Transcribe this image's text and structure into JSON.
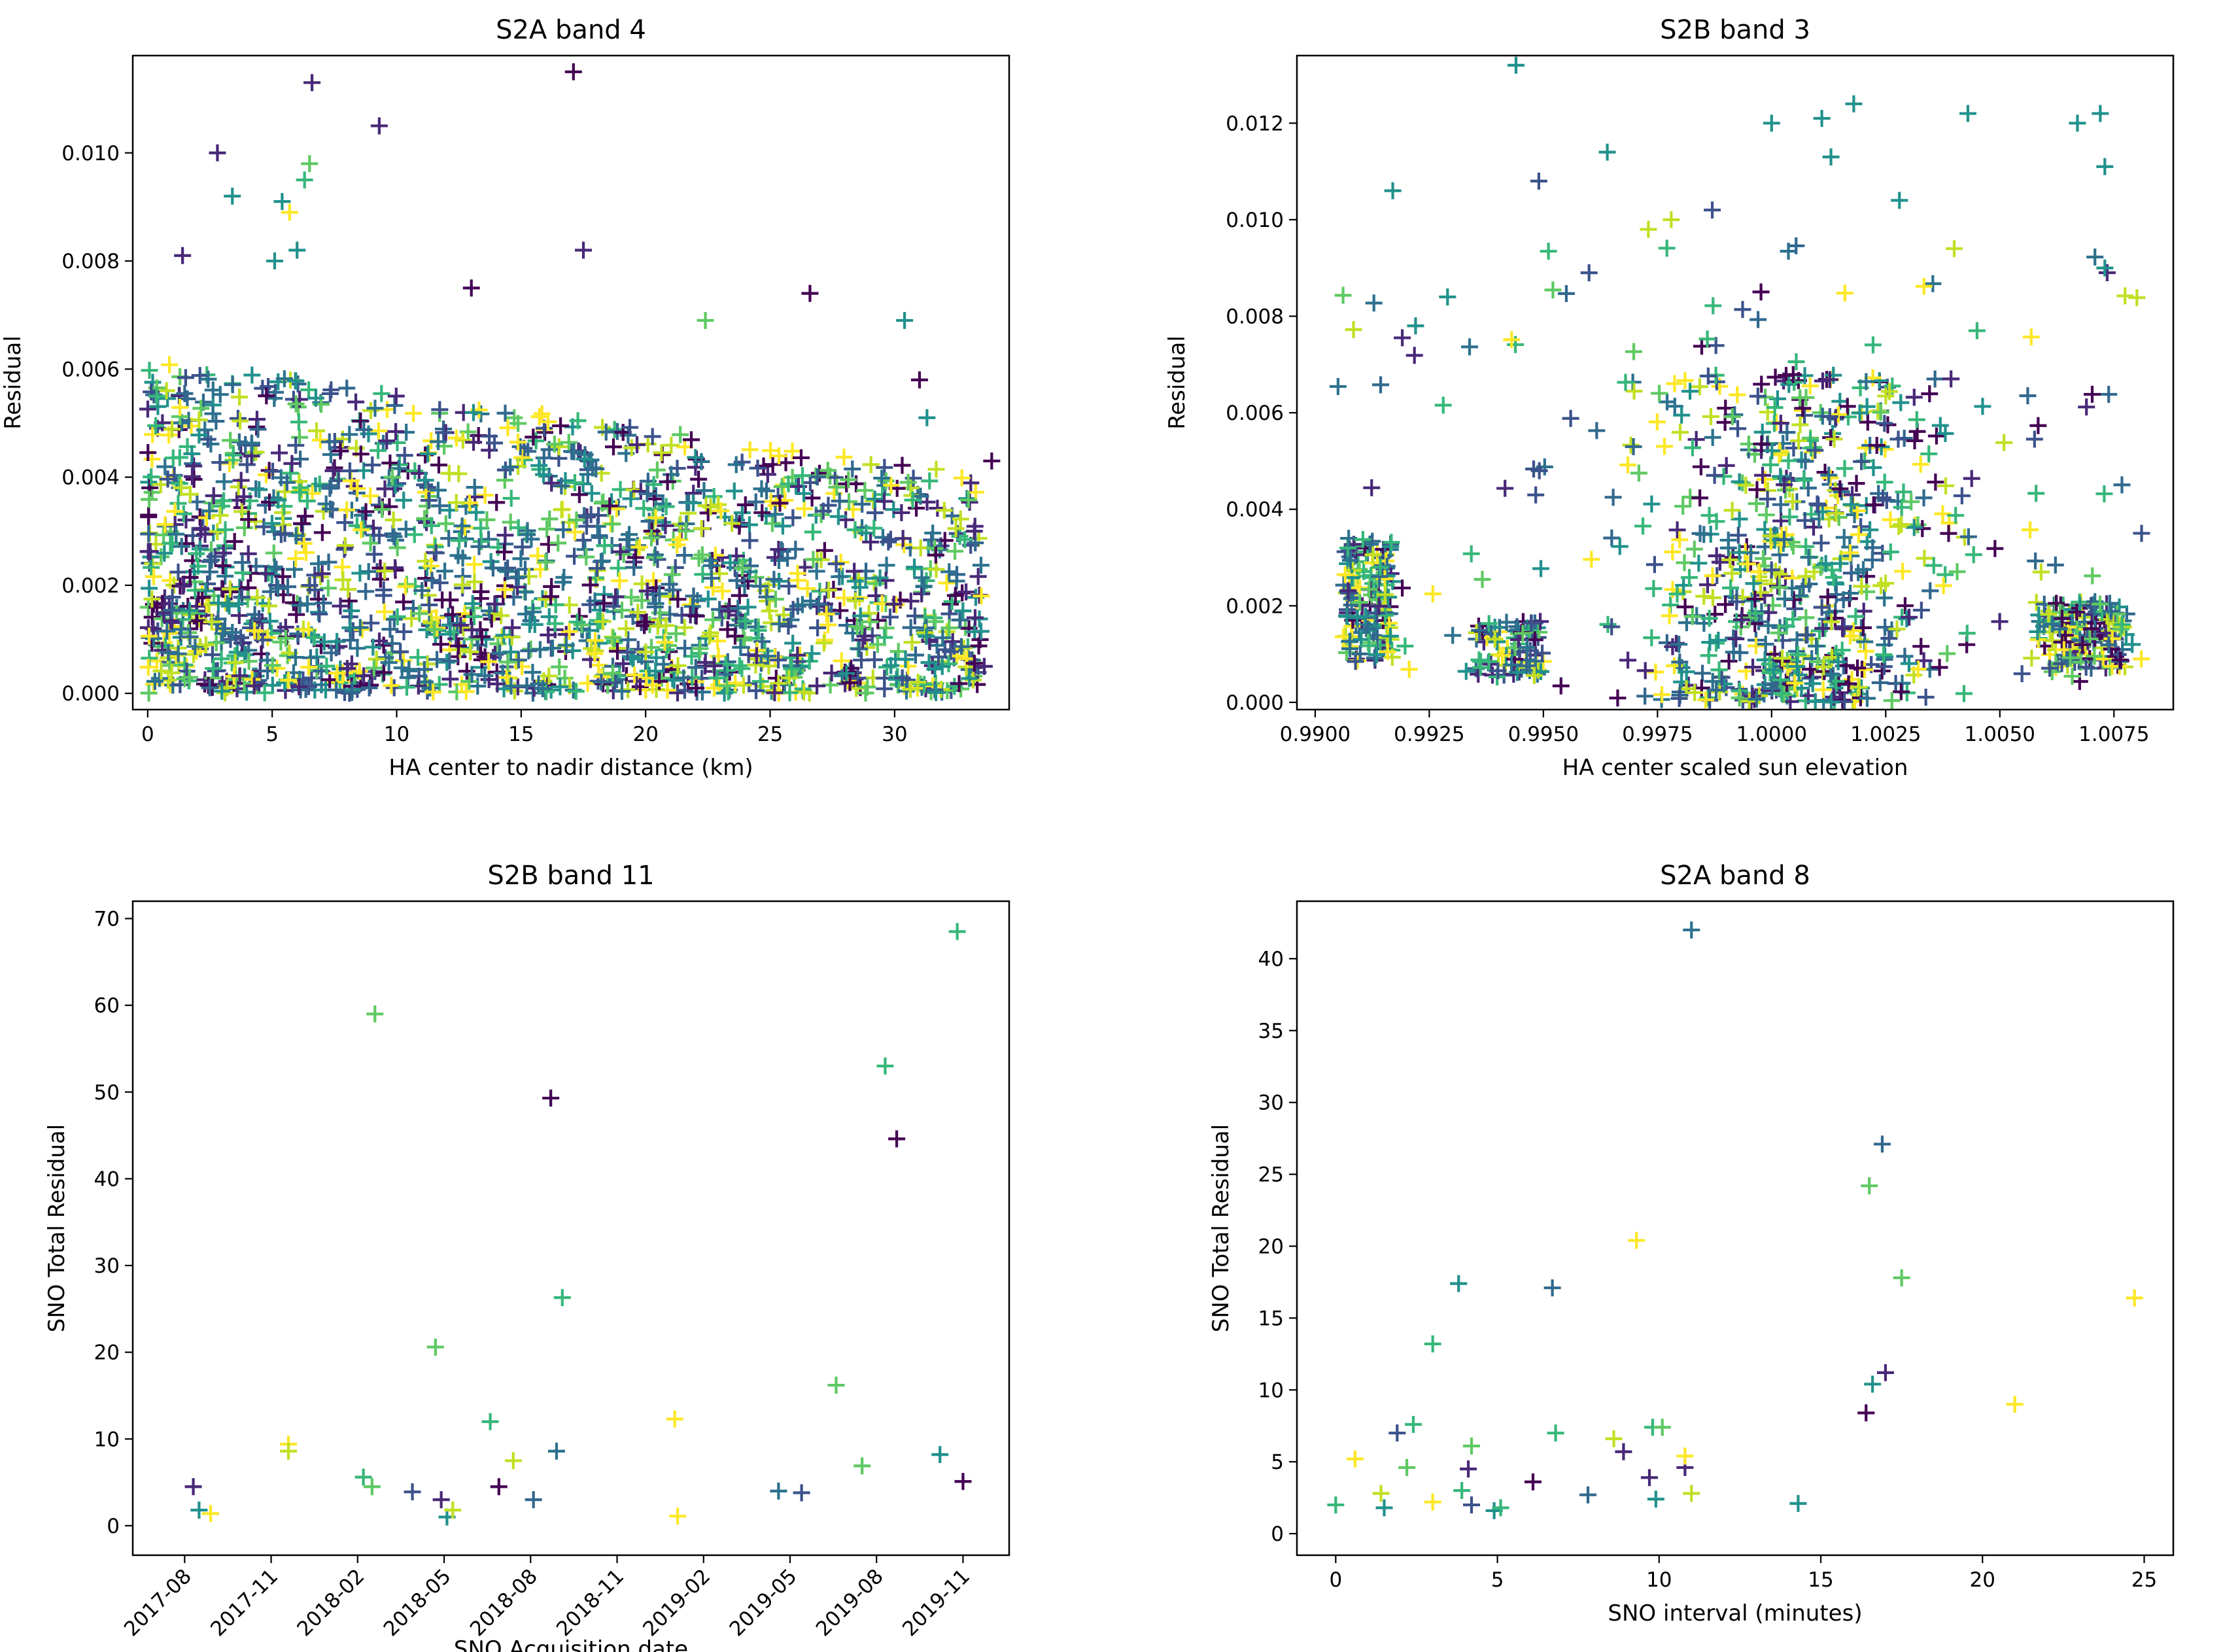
{
  "figure": {
    "description_colors": "viridis"
  },
  "colors": [
    "#440154",
    "#3b528b",
    "#21918c",
    "#5ec962",
    "#fde725",
    "#482878",
    "#31688e",
    "#35b779",
    "#c2df23",
    "#2c728e"
  ],
  "chart_data": [
    {
      "type": "scatter",
      "title": "S2A band 4",
      "xlabel": "HA center to nadir distance (km)",
      "ylabel": "Residual",
      "xlim": [
        -0.6,
        34.6
      ],
      "ylim": [
        -0.0003,
        0.0118
      ],
      "xticks": [
        0,
        5,
        10,
        15,
        20,
        25,
        30
      ],
      "xtick_labels": [
        "0",
        "5",
        "10",
        "15",
        "20",
        "25",
        "30"
      ],
      "yticks": [
        0.0,
        0.002,
        0.004,
        0.006,
        0.008,
        0.01
      ],
      "ytick_labels": [
        "0.000",
        "0.002",
        "0.004",
        "0.006",
        "0.008",
        "0.010"
      ],
      "marker": "+",
      "highlighted_points": [
        {
          "x": 6.6,
          "y": 0.0113,
          "c": 5
        },
        {
          "x": 17.1,
          "y": 0.0115,
          "c": 0
        },
        {
          "x": 2.8,
          "y": 0.01,
          "c": 5
        },
        {
          "x": 9.3,
          "y": 0.0105,
          "c": 5
        },
        {
          "x": 3.4,
          "y": 0.0092,
          "c": 2
        },
        {
          "x": 6.5,
          "y": 0.0098,
          "c": 3
        },
        {
          "x": 5.4,
          "y": 0.0091,
          "c": 2
        },
        {
          "x": 5.7,
          "y": 0.0089,
          "c": 4
        },
        {
          "x": 6.3,
          "y": 0.0095,
          "c": 7
        },
        {
          "x": 1.4,
          "y": 0.0081,
          "c": 5
        },
        {
          "x": 17.5,
          "y": 0.0082,
          "c": 5
        },
        {
          "x": 6.0,
          "y": 0.0082,
          "c": 2
        },
        {
          "x": 5.1,
          "y": 0.008,
          "c": 2
        },
        {
          "x": 26.6,
          "y": 0.0074,
          "c": 0
        },
        {
          "x": 13.0,
          "y": 0.0075,
          "c": 0
        },
        {
          "x": 30.4,
          "y": 0.0069,
          "c": 2
        },
        {
          "x": 22.4,
          "y": 0.0069,
          "c": 3
        },
        {
          "x": 33.9,
          "y": 0.0043,
          "c": 0
        },
        {
          "x": 33.2,
          "y": 0.003,
          "c": 5
        },
        {
          "x": 33.6,
          "y": 0.0005,
          "c": 5
        },
        {
          "x": 32.5,
          "y": 0.0022,
          "c": 6
        },
        {
          "x": 31.0,
          "y": 0.0058,
          "c": 0
        },
        {
          "x": 31.3,
          "y": 0.0051,
          "c": 2
        }
      ],
      "cloud": {
        "n": 1800,
        "x_range": [
          0,
          33.5
        ],
        "typical_max": 0.0062
      }
    },
    {
      "type": "scatter",
      "title": "S2B band 3",
      "xlabel": "HA center scaled sun elevation",
      "ylabel": "Residual",
      "xlim": [
        0.9896,
        1.0088
      ],
      "ylim": [
        -0.00015,
        0.0134
      ],
      "xticks": [
        0.99,
        0.9925,
        0.995,
        0.9975,
        1.0,
        1.0025,
        1.005,
        1.0075
      ],
      "xtick_labels": [
        "0.9900",
        "0.9925",
        "0.9950",
        "0.9975",
        "1.0000",
        "1.0025",
        "1.0050",
        "1.0075"
      ],
      "yticks": [
        0.0,
        0.002,
        0.004,
        0.006,
        0.008,
        0.01,
        0.012
      ],
      "ytick_labels": [
        "0.000",
        "0.002",
        "0.004",
        "0.006",
        "0.008",
        "0.010",
        "0.012"
      ],
      "marker": "+",
      "highlighted_points": [
        {
          "x": 0.9944,
          "y": 0.0132,
          "c": 2
        },
        {
          "x": 0.9917,
          "y": 0.0106,
          "c": 2
        },
        {
          "x": 0.9949,
          "y": 0.0108,
          "c": 1
        },
        {
          "x": 1.0018,
          "y": 0.0124,
          "c": 2
        },
        {
          "x": 1.0043,
          "y": 0.0122,
          "c": 2
        },
        {
          "x": 1.0072,
          "y": 0.0122,
          "c": 2
        },
        {
          "x": 1.0067,
          "y": 0.012,
          "c": 2
        },
        {
          "x": 1.0011,
          "y": 0.0121,
          "c": 2
        },
        {
          "x": 1.0,
          "y": 0.012,
          "c": 2
        },
        {
          "x": 1.0073,
          "y": 0.0111,
          "c": 2
        },
        {
          "x": 1.0073,
          "y": 0.009,
          "c": 2
        },
        {
          "x": 1.0028,
          "y": 0.0104,
          "c": 2
        },
        {
          "x": 1.0013,
          "y": 0.0113,
          "c": 2
        },
        {
          "x": 0.9964,
          "y": 0.0114,
          "c": 2
        },
        {
          "x": 0.9922,
          "y": 0.0078,
          "c": 2
        },
        {
          "x": 0.9929,
          "y": 0.0084,
          "c": 2
        },
        {
          "x": 1.004,
          "y": 0.0094,
          "c": 8
        },
        {
          "x": 1.0045,
          "y": 0.0077,
          "c": 7
        },
        {
          "x": 0.9978,
          "y": 0.01,
          "c": 8
        },
        {
          "x": 0.9973,
          "y": 0.0098,
          "c": 8
        },
        {
          "x": 0.9987,
          "y": 0.0102,
          "c": 1
        },
        {
          "x": 0.996,
          "y": 0.0089,
          "c": 1
        },
        {
          "x": 1.0081,
          "y": 0.0009,
          "c": 4
        },
        {
          "x": 1.0079,
          "y": 0.0012,
          "c": 2
        }
      ],
      "cloud": {
        "n": 1100,
        "x_range": [
          0.9905,
          1.0082
        ],
        "typical_max": 0.0065
      }
    },
    {
      "type": "scatter",
      "title": "S2B band 11",
      "xlabel": "SNO Acquisition date",
      "ylabel": "SNO Total Residual",
      "xlim": [
        -1.8,
        28.6
      ],
      "ylim": [
        -3.4,
        72.0
      ],
      "xticks": [
        0,
        3,
        6,
        9,
        12,
        15,
        18,
        21,
        24,
        27
      ],
      "xtick_labels": [
        "2017-08",
        "2017-11",
        "2018-02",
        "2018-05",
        "2018-08",
        "2018-11",
        "2019-02",
        "2019-05",
        "2019-08",
        "2019-11"
      ],
      "yticks": [
        0,
        10,
        20,
        30,
        40,
        50,
        60,
        70
      ],
      "ytick_labels": [
        "0",
        "10",
        "20",
        "30",
        "40",
        "50",
        "60",
        "70"
      ],
      "marker": "+",
      "points": [
        {
          "x": 0.3,
          "y": 4.5,
          "c": 5
        },
        {
          "x": 0.5,
          "y": 1.8,
          "c": 2
        },
        {
          "x": 0.9,
          "y": 1.4,
          "c": 4
        },
        {
          "x": 3.6,
          "y": 9.4,
          "c": 4
        },
        {
          "x": 3.6,
          "y": 8.6,
          "c": 8
        },
        {
          "x": 6.2,
          "y": 5.6,
          "c": 7
        },
        {
          "x": 6.5,
          "y": 4.5,
          "c": 3
        },
        {
          "x": 6.6,
          "y": 59.0,
          "c": 3
        },
        {
          "x": 7.9,
          "y": 3.9,
          "c": 1
        },
        {
          "x": 8.7,
          "y": 20.6,
          "c": 3
        },
        {
          "x": 8.9,
          "y": 3.0,
          "c": 5
        },
        {
          "x": 9.1,
          "y": 1.0,
          "c": 2
        },
        {
          "x": 9.3,
          "y": 1.8,
          "c": 8
        },
        {
          "x": 10.6,
          "y": 12.0,
          "c": 7
        },
        {
          "x": 10.9,
          "y": 4.5,
          "c": 0
        },
        {
          "x": 11.4,
          "y": 7.5,
          "c": 8
        },
        {
          "x": 12.1,
          "y": 3.0,
          "c": 6
        },
        {
          "x": 12.7,
          "y": 49.3,
          "c": 0
        },
        {
          "x": 12.9,
          "y": 8.6,
          "c": 9
        },
        {
          "x": 13.1,
          "y": 26.3,
          "c": 7
        },
        {
          "x": 17.0,
          "y": 12.3,
          "c": 4
        },
        {
          "x": 17.1,
          "y": 1.1,
          "c": 4
        },
        {
          "x": 20.6,
          "y": 4.0,
          "c": 9
        },
        {
          "x": 21.4,
          "y": 3.8,
          "c": 1
        },
        {
          "x": 22.6,
          "y": 16.2,
          "c": 3
        },
        {
          "x": 23.5,
          "y": 6.9,
          "c": 3
        },
        {
          "x": 24.3,
          "y": 53.0,
          "c": 7
        },
        {
          "x": 24.7,
          "y": 44.6,
          "c": 0
        },
        {
          "x": 26.2,
          "y": 8.2,
          "c": 2
        },
        {
          "x": 26.8,
          "y": 68.5,
          "c": 7
        },
        {
          "x": 27.0,
          "y": 5.1,
          "c": 0
        }
      ]
    },
    {
      "type": "scatter",
      "title": "S2A band 8",
      "xlabel": "SNO interval (minutes)",
      "ylabel": "SNO Total Residual",
      "xlim": [
        -1.2,
        25.9
      ],
      "ylim": [
        -1.5,
        44.0
      ],
      "xticks": [
        0,
        5,
        10,
        15,
        20,
        25
      ],
      "xtick_labels": [
        "0",
        "5",
        "10",
        "15",
        "20",
        "25"
      ],
      "yticks": [
        0,
        5,
        10,
        15,
        20,
        25,
        30,
        35,
        40
      ],
      "ytick_labels": [
        "0",
        "5",
        "10",
        "15",
        "20",
        "25",
        "30",
        "35",
        "40"
      ],
      "marker": "+",
      "points": [
        {
          "x": 0.0,
          "y": 2.0,
          "c": 7
        },
        {
          "x": 0.6,
          "y": 5.2,
          "c": 4
        },
        {
          "x": 1.4,
          "y": 2.8,
          "c": 8
        },
        {
          "x": 1.5,
          "y": 1.8,
          "c": 2
        },
        {
          "x": 1.9,
          "y": 7.0,
          "c": 1
        },
        {
          "x": 2.2,
          "y": 4.6,
          "c": 3
        },
        {
          "x": 2.4,
          "y": 7.6,
          "c": 7
        },
        {
          "x": 3.0,
          "y": 2.2,
          "c": 4
        },
        {
          "x": 3.0,
          "y": 13.2,
          "c": 7
        },
        {
          "x": 3.8,
          "y": 17.4,
          "c": 2
        },
        {
          "x": 3.9,
          "y": 3.0,
          "c": 7
        },
        {
          "x": 4.1,
          "y": 4.5,
          "c": 5
        },
        {
          "x": 4.2,
          "y": 6.1,
          "c": 3
        },
        {
          "x": 4.2,
          "y": 2.0,
          "c": 1
        },
        {
          "x": 4.9,
          "y": 1.6,
          "c": 2
        },
        {
          "x": 5.1,
          "y": 1.8,
          "c": 7
        },
        {
          "x": 6.1,
          "y": 3.6,
          "c": 0
        },
        {
          "x": 6.7,
          "y": 17.1,
          "c": 6
        },
        {
          "x": 6.8,
          "y": 7.0,
          "c": 7
        },
        {
          "x": 7.8,
          "y": 2.7,
          "c": 6
        },
        {
          "x": 8.6,
          "y": 6.6,
          "c": 8
        },
        {
          "x": 8.9,
          "y": 5.7,
          "c": 5
        },
        {
          "x": 9.3,
          "y": 20.4,
          "c": 4
        },
        {
          "x": 9.7,
          "y": 3.9,
          "c": 5
        },
        {
          "x": 9.8,
          "y": 7.4,
          "c": 7
        },
        {
          "x": 9.9,
          "y": 2.4,
          "c": 2
        },
        {
          "x": 10.1,
          "y": 7.4,
          "c": 3
        },
        {
          "x": 10.8,
          "y": 4.6,
          "c": 5
        },
        {
          "x": 10.8,
          "y": 5.4,
          "c": 4
        },
        {
          "x": 11.0,
          "y": 2.8,
          "c": 8
        },
        {
          "x": 11.0,
          "y": 42.0,
          "c": 9
        },
        {
          "x": 14.3,
          "y": 2.1,
          "c": 2
        },
        {
          "x": 16.4,
          "y": 8.4,
          "c": 0
        },
        {
          "x": 16.5,
          "y": 24.2,
          "c": 3
        },
        {
          "x": 16.6,
          "y": 10.4,
          "c": 2
        },
        {
          "x": 16.9,
          "y": 27.1,
          "c": 6
        },
        {
          "x": 17.0,
          "y": 11.2,
          "c": 5
        },
        {
          "x": 17.5,
          "y": 17.8,
          "c": 3
        },
        {
          "x": 21.0,
          "y": 9.0,
          "c": 4
        },
        {
          "x": 24.7,
          "y": 16.4,
          "c": 4
        }
      ]
    }
  ]
}
